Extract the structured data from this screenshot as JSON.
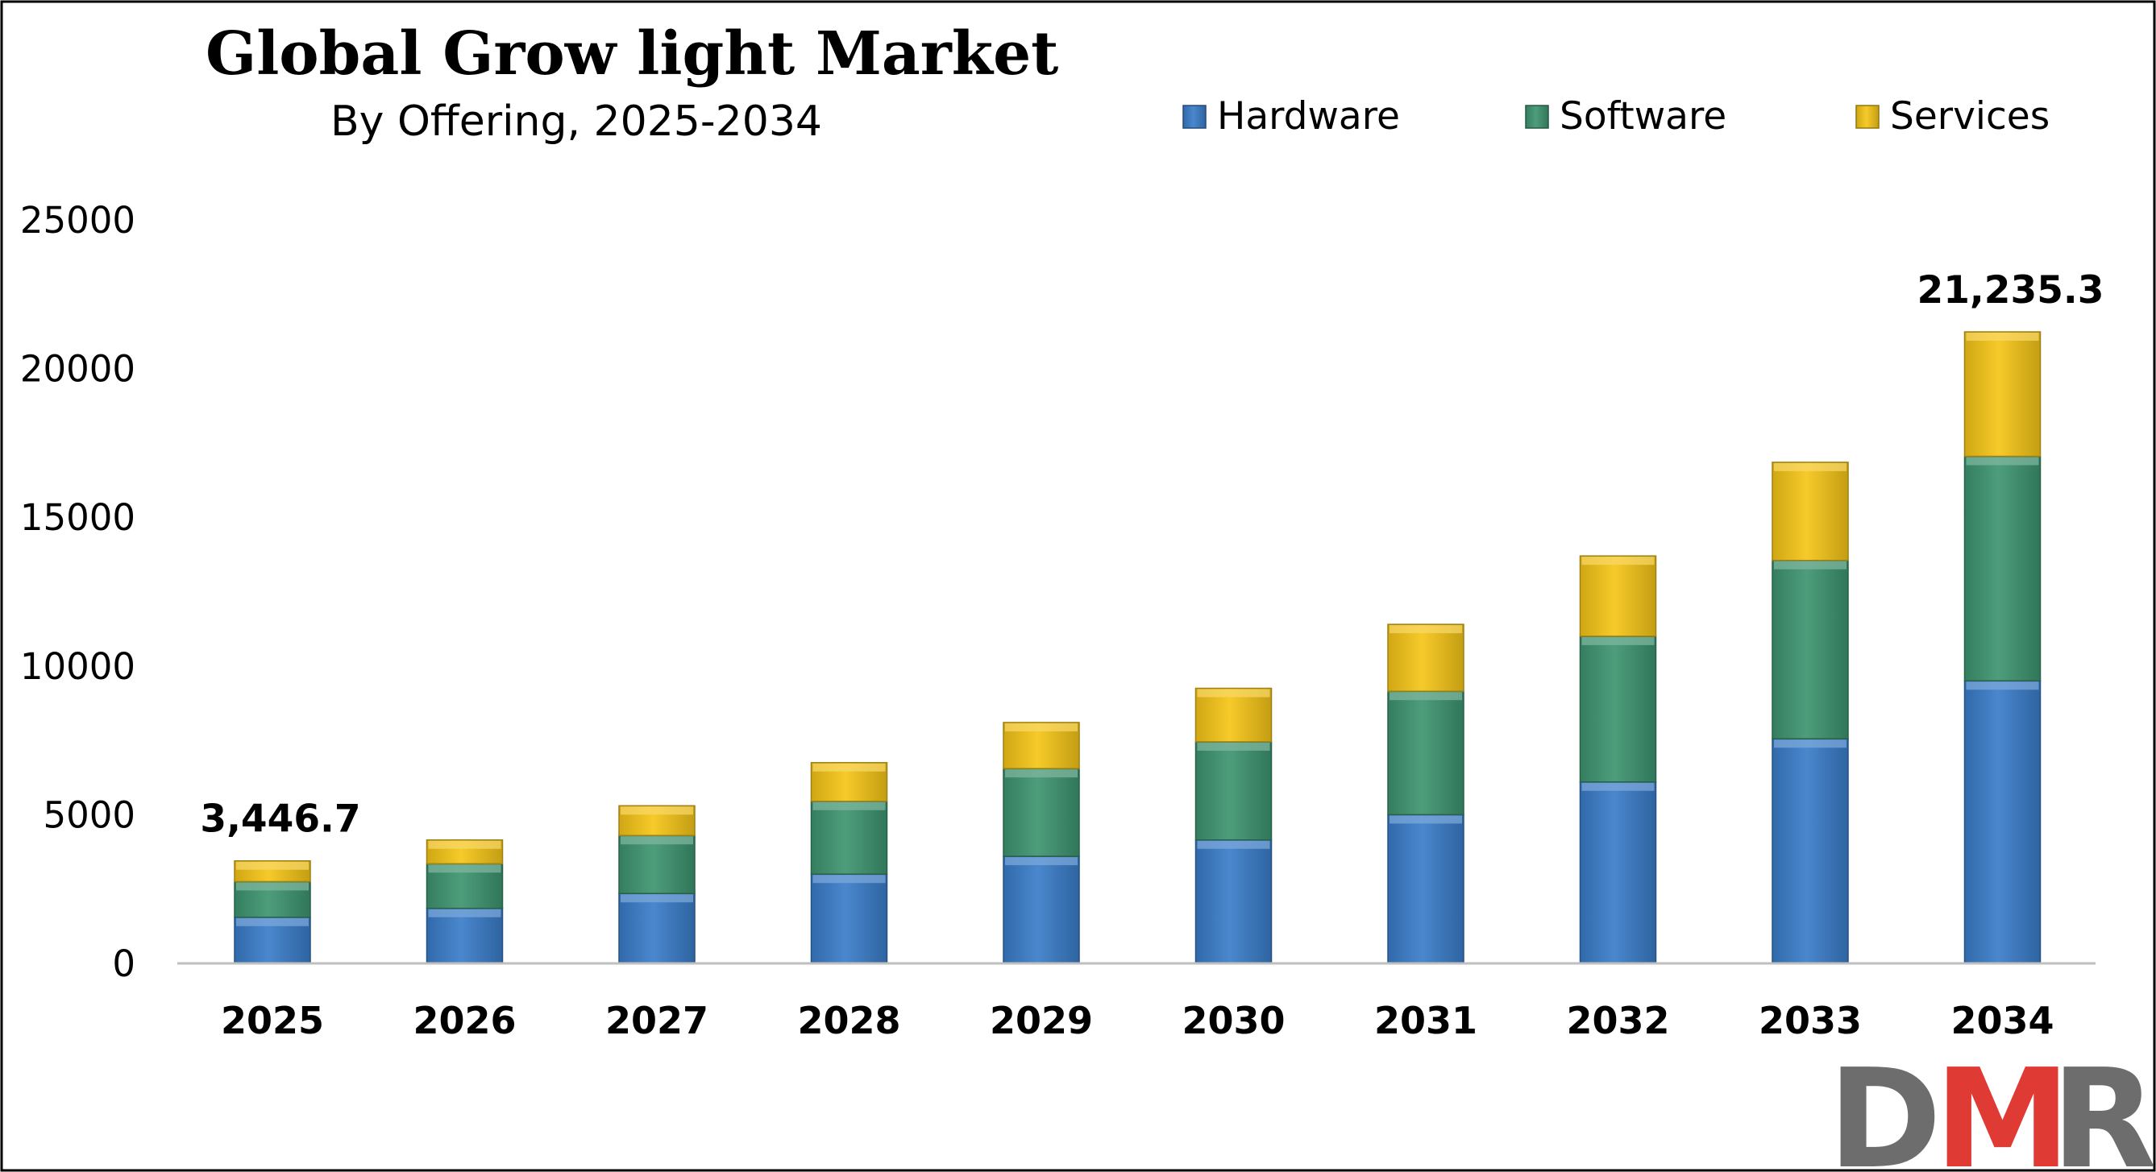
{
  "chart_data": {
    "type": "bar",
    "stacked": true,
    "title": "Global Grow light Market",
    "subtitle": "By Offering, 2025-2034",
    "categories": [
      "2025",
      "2026",
      "2027",
      "2028",
      "2029",
      "2030",
      "2031",
      "2032",
      "2033",
      "2034"
    ],
    "series": [
      {
        "name": "Hardware",
        "color": "#3a7dc9",
        "values": [
          1550,
          1850,
          2350,
          3000,
          3600,
          4150,
          5000,
          6100,
          7550,
          9500
        ]
      },
      {
        "name": "Software",
        "color": "#3d9470",
        "values": [
          1200,
          1500,
          1950,
          2450,
          2950,
          3300,
          4150,
          4900,
          6000,
          7550
        ]
      },
      {
        "name": "Services",
        "color": "#f5c518",
        "values": [
          696.7,
          800,
          1000,
          1300,
          1550,
          1800,
          2250,
          2700,
          3300,
          4185.3
        ]
      }
    ],
    "data_labels": [
      {
        "category": "2025",
        "text": "3,446.7"
      },
      {
        "category": "2034",
        "text": "21,235.3"
      }
    ],
    "ylim": [
      0,
      25000
    ],
    "yticks": [
      "0",
      "5000",
      "10000",
      "15000",
      "20000",
      "25000"
    ],
    "xlabel": "",
    "ylabel": "",
    "grid": false,
    "legend": "top-right"
  },
  "logo": {
    "text": "DMR",
    "colors": [
      "#e03a35",
      "#6d6d6d"
    ]
  }
}
